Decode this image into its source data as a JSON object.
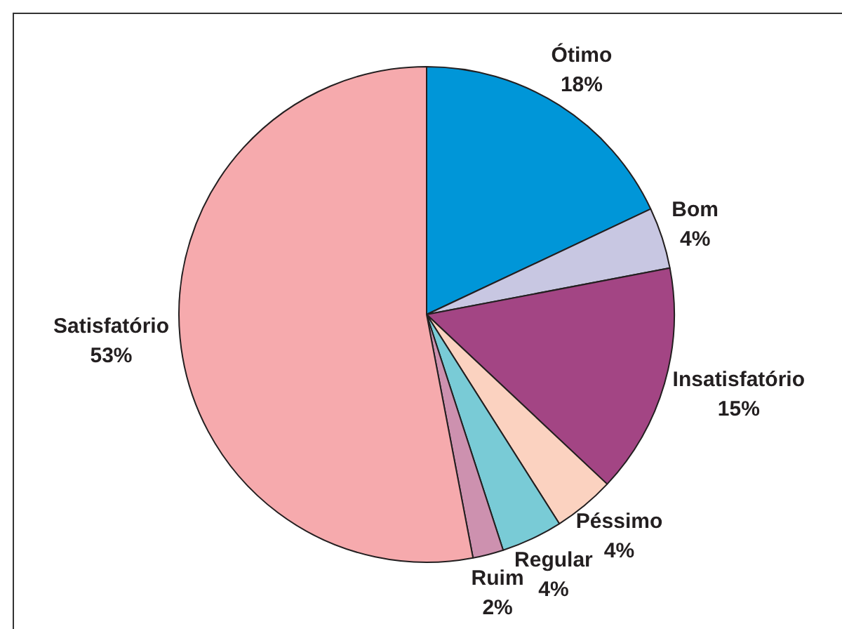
{
  "chart_data": {
    "type": "pie",
    "categories": [
      "Ótimo",
      "Bom",
      "Insatisfatório",
      "Péssimo",
      "Regular",
      "Ruim",
      "Satisfatório"
    ],
    "values": [
      18,
      4,
      15,
      4,
      4,
      2,
      53
    ],
    "value_labels": [
      "18%",
      "4%",
      "15%",
      "4%",
      "4%",
      "2%",
      "53%"
    ],
    "colors": [
      "#0096d8",
      "#c8c7e2",
      "#a34584",
      "#fbd2c0",
      "#79cbd6",
      "#cd91af",
      "#f6aaad"
    ],
    "legend": false
  }
}
